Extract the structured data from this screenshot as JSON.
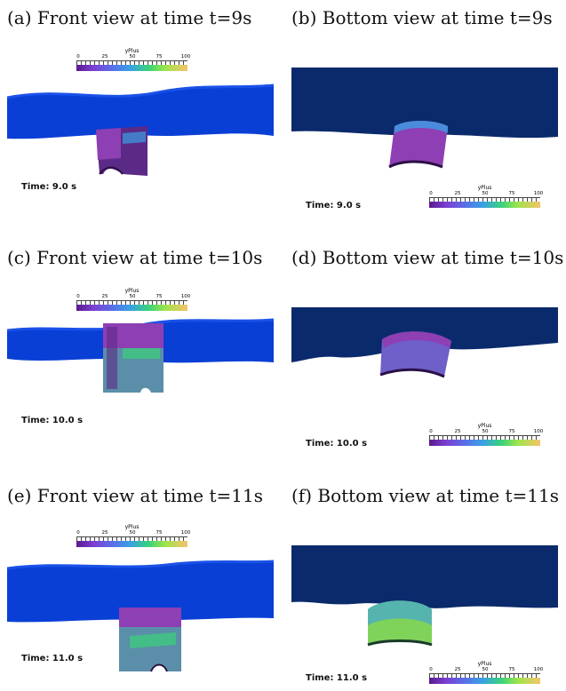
{
  "panels": [
    {
      "caption": "(a) Front view at time t=9s",
      "time": "Time: 9.0 s",
      "view": "front"
    },
    {
      "caption": "(b) Bottom view at time t=9s",
      "time": "Time: 9.0 s",
      "view": "bottom"
    },
    {
      "caption": "(c) Front view at time t=10s",
      "time": "Time: 10.0 s",
      "view": "front"
    },
    {
      "caption": "(d) Bottom view at time t=10s",
      "time": "Time: 10.0 s",
      "view": "bottom"
    },
    {
      "caption": "(e) Front view at time t=11s",
      "time": "Time: 11.0 s",
      "view": "front"
    },
    {
      "caption": "(f) Bottom view at time t=11s",
      "time": "Time: 11.0 s",
      "view": "bottom"
    }
  ],
  "colorbar": {
    "title": "yPlus",
    "ticks": [
      "0",
      "25",
      "50",
      "75",
      "100"
    ],
    "colors": [
      "#5a1a8c",
      "#7b3fd0",
      "#5a6ee8",
      "#3aa0e6",
      "#3ad27a",
      "#9fe44c",
      "#f5c36a"
    ]
  },
  "colors": {
    "water_front": "#0a3fd6",
    "background_bottom": "#0b2a6b",
    "surface_bottom": "#ffffff",
    "structure_dark": "#5b2a86",
    "structure_mid": "#8e3fb3"
  }
}
